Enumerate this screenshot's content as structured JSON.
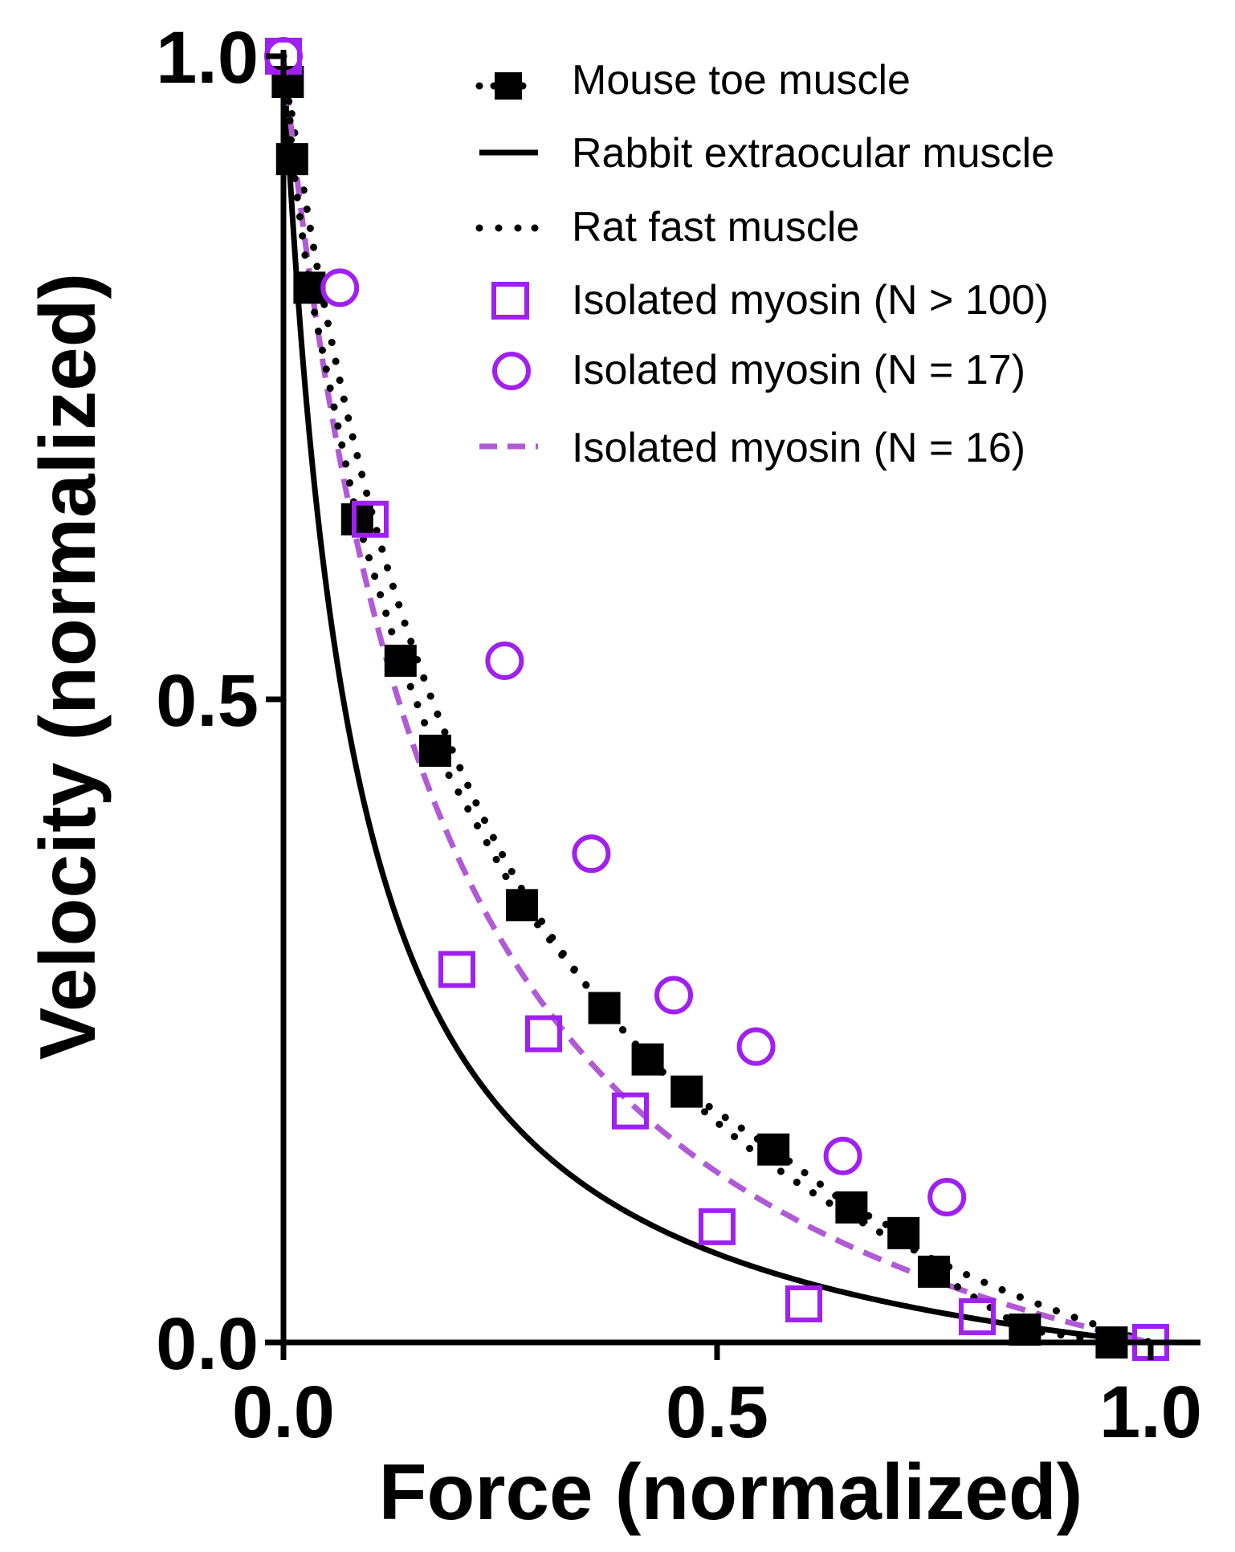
{
  "chart_data": {
    "type": "scatter",
    "title": "",
    "xlabel": "Force (normalized)",
    "ylabel": "Velocity (normalized)",
    "xlim": [
      0,
      1.05
    ],
    "ylim": [
      0,
      1.0
    ],
    "xticks": [
      "0.0",
      "0.5",
      "1.0"
    ],
    "xtick_values": [
      0,
      0.5,
      1.0
    ],
    "yticks": [
      "0.0",
      "0.5",
      "1.0"
    ],
    "ytick_values": [
      0,
      0.5,
      1.0
    ],
    "grid": false,
    "legend_position": "top-right",
    "series": [
      {
        "name": "Mouse toe muscle",
        "kind": "markers-filled-square",
        "color": "#000000",
        "x": [
          0.005,
          0.01,
          0.03,
          0.085,
          0.135,
          0.175,
          0.275,
          0.37,
          0.42,
          0.465,
          0.565,
          0.655,
          0.715,
          0.75,
          0.855,
          0.955
        ],
        "y": [
          0.98,
          0.92,
          0.82,
          0.64,
          0.53,
          0.46,
          0.34,
          0.26,
          0.22,
          0.195,
          0.15,
          0.105,
          0.085,
          0.055,
          0.01,
          0.0
        ]
      },
      {
        "name": "Rabbit extraocular muscle",
        "kind": "line-solid",
        "color": "#000000",
        "hill_a": 0.08
      },
      {
        "name": "Rat fast muscle",
        "kind": "line-dotted",
        "color": "#000000",
        "hill_a": 0.26
      },
      {
        "name": "Isolated myosin (N > 100)",
        "kind": "markers-open-square",
        "color": "#a020f0",
        "x": [
          0.0,
          0.1,
          0.2,
          0.3,
          0.4,
          0.5,
          0.6,
          0.8,
          1.0
        ],
        "y": [
          1.0,
          0.64,
          0.29,
          0.24,
          0.18,
          0.09,
          0.03,
          0.02,
          0.0
        ]
      },
      {
        "name": "Isolated myosin (N = 17)",
        "kind": "markers-open-circle",
        "color": "#a020f0",
        "x": [
          0.0,
          0.065,
          0.255,
          0.355,
          0.45,
          0.545,
          0.645,
          0.765
        ],
        "y": [
          1.0,
          0.82,
          0.53,
          0.38,
          0.27,
          0.23,
          0.145,
          0.113
        ]
      },
      {
        "name": "Isolated myosin (N = 16)",
        "kind": "line-dashed",
        "color": "#b05ad6",
        "hill_a": 0.18
      }
    ]
  }
}
